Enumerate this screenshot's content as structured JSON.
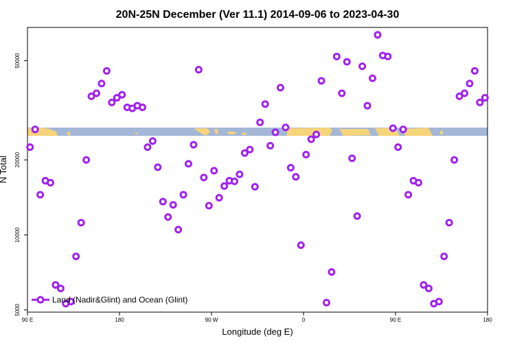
{
  "chart_data": {
    "type": "scatter",
    "title": "20N-25N December (Ver 11.1)   2014-09-06 to 2023-04-30",
    "xlabel": "Longitude (deg E)",
    "ylabel": "N Total",
    "y_scale": "log",
    "ylim": [
      4900,
      68000
    ],
    "x_ticks": [
      {
        "label": "90 E",
        "lon_shift": 0
      },
      {
        "label": "180",
        "lon_shift": 90
      },
      {
        "label": "90 W",
        "lon_shift": 180
      },
      {
        "label": "0",
        "lon_shift": 270
      },
      {
        "label": "90 E",
        "lon_shift": 360
      },
      {
        "label": "180",
        "lon_shift": 450
      }
    ],
    "x_range_shifted": [
      0,
      450
    ],
    "y_ticks": [
      {
        "label": "5000",
        "value": 5000
      },
      {
        "label": "10000",
        "value": 10000
      },
      {
        "label": "20000",
        "value": 20000
      },
      {
        "label": "50000",
        "value": 50000
      }
    ],
    "legend": {
      "label": "Land (Nadir&Glint) and Ocean (Glint)",
      "position": "bottom-left"
    },
    "series": [
      {
        "name": "Land (Nadir&Glint) and Ocean (Glint)",
        "color": "#a020f0",
        "points": [
          {
            "x": 2.5,
            "y": 22500
          },
          {
            "x": 7.5,
            "y": 26500
          },
          {
            "x": 12.5,
            "y": 14500
          },
          {
            "x": 17.5,
            "y": 16500
          },
          {
            "x": 22.5,
            "y": 16200
          },
          {
            "x": 27.5,
            "y": 6300
          },
          {
            "x": 32.5,
            "y": 6100
          },
          {
            "x": 37.5,
            "y": 5300
          },
          {
            "x": 42.5,
            "y": 5400
          },
          {
            "x": 47.5,
            "y": 8200
          },
          {
            "x": 52.5,
            "y": 11200
          },
          {
            "x": 57.5,
            "y": 20000
          },
          {
            "x": 62.5,
            "y": 36000
          },
          {
            "x": 67.5,
            "y": 37000
          },
          {
            "x": 72.5,
            "y": 40500
          },
          {
            "x": 77.5,
            "y": 45500
          },
          {
            "x": 82.5,
            "y": 34000
          },
          {
            "x": 87.5,
            "y": 35500
          },
          {
            "x": 92.5,
            "y": 36500
          },
          {
            "x": 97.5,
            "y": 32500
          },
          {
            "x": 102.5,
            "y": 32200
          },
          {
            "x": 107.5,
            "y": 33000
          },
          {
            "x": 112.5,
            "y": 32500
          },
          {
            "x": 117.5,
            "y": 22500
          },
          {
            "x": 122.5,
            "y": 23800
          },
          {
            "x": 127.5,
            "y": 18700
          },
          {
            "x": 132.5,
            "y": 13600
          },
          {
            "x": 137.5,
            "y": 11800
          },
          {
            "x": 142.5,
            "y": 13200
          },
          {
            "x": 147.5,
            "y": 10500
          },
          {
            "x": 152.5,
            "y": 14500
          },
          {
            "x": 157.5,
            "y": 19300
          },
          {
            "x": 162.5,
            "y": 23000
          },
          {
            "x": 167.5,
            "y": 46000
          },
          {
            "x": 172.5,
            "y": 17000
          },
          {
            "x": 177.5,
            "y": 13100
          },
          {
            "x": 182.5,
            "y": 18100
          },
          {
            "x": 187.5,
            "y": 14100
          },
          {
            "x": 192.5,
            "y": 15700
          },
          {
            "x": 197.5,
            "y": 16500
          },
          {
            "x": 202.5,
            "y": 16400
          },
          {
            "x": 207.5,
            "y": 17500
          },
          {
            "x": 212.5,
            "y": 21300
          },
          {
            "x": 217.5,
            "y": 22000
          },
          {
            "x": 222.5,
            "y": 15600
          },
          {
            "x": 227.5,
            "y": 28300
          },
          {
            "x": 232.5,
            "y": 33500
          },
          {
            "x": 237.5,
            "y": 22800
          },
          {
            "x": 242.5,
            "y": 25800
          },
          {
            "x": 247.5,
            "y": 39000
          },
          {
            "x": 252.5,
            "y": 27000
          },
          {
            "x": 257.5,
            "y": 18600
          },
          {
            "x": 262.5,
            "y": 17100
          },
          {
            "x": 267.5,
            "y": 9100
          },
          {
            "x": 272.5,
            "y": 21000
          },
          {
            "x": 277.5,
            "y": 24200
          },
          {
            "x": 282.5,
            "y": 25300
          },
          {
            "x": 287.5,
            "y": 41500
          },
          {
            "x": 292.5,
            "y": 5350
          },
          {
            "x": 297.5,
            "y": 7100
          },
          {
            "x": 302.5,
            "y": 52000
          },
          {
            "x": 307.5,
            "y": 37000
          },
          {
            "x": 312.5,
            "y": 49500
          },
          {
            "x": 317.5,
            "y": 20300
          },
          {
            "x": 322.5,
            "y": 11900
          },
          {
            "x": 327.5,
            "y": 47500
          },
          {
            "x": 332.5,
            "y": 33000
          },
          {
            "x": 337.5,
            "y": 42500
          },
          {
            "x": 342.5,
            "y": 63500
          },
          {
            "x": 347.5,
            "y": 52500
          },
          {
            "x": 352.5,
            "y": 52000
          },
          {
            "x": 357.5,
            "y": 26800
          },
          {
            "x": 362.5,
            "y": 22500
          },
          {
            "x": 367.5,
            "y": 26500
          },
          {
            "x": 372.5,
            "y": 14500
          },
          {
            "x": 377.5,
            "y": 16500
          },
          {
            "x": 382.5,
            "y": 16200
          },
          {
            "x": 387.5,
            "y": 6300
          },
          {
            "x": 392.5,
            "y": 6100
          },
          {
            "x": 397.5,
            "y": 5300
          },
          {
            "x": 402.5,
            "y": 5400
          },
          {
            "x": 407.5,
            "y": 8200
          },
          {
            "x": 412.5,
            "y": 11200
          },
          {
            "x": 417.5,
            "y": 20000
          },
          {
            "x": 422.5,
            "y": 36000
          },
          {
            "x": 427.5,
            "y": 37000
          },
          {
            "x": 432.5,
            "y": 40500
          },
          {
            "x": 437.5,
            "y": 45500
          },
          {
            "x": 442.5,
            "y": 34000
          },
          {
            "x": 447.5,
            "y": 35500
          }
        ]
      }
    ]
  }
}
